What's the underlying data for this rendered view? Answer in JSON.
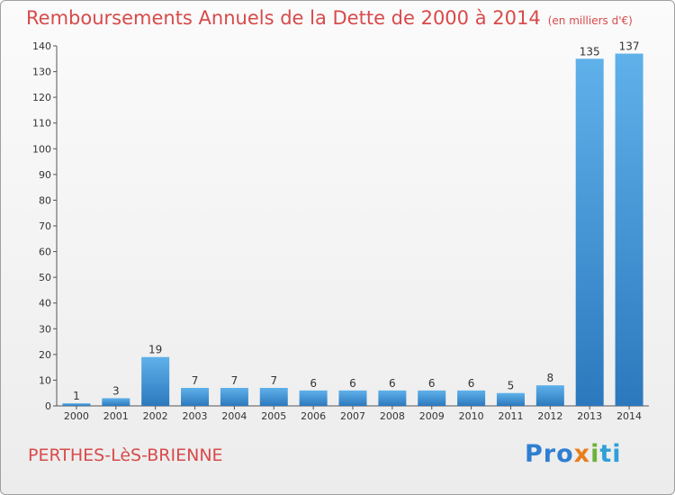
{
  "chart_data": {
    "type": "bar",
    "title": "Remboursements Annuels de la Dette de 2000 à 2014",
    "unit_note": "(en milliers d'€)",
    "categories": [
      "2000",
      "2001",
      "2002",
      "2003",
      "2004",
      "2005",
      "2006",
      "2007",
      "2008",
      "2009",
      "2010",
      "2011",
      "2012",
      "2013",
      "2014"
    ],
    "values": [
      1,
      3,
      19,
      7,
      7,
      7,
      6,
      6,
      6,
      6,
      6,
      5,
      8,
      135,
      137
    ],
    "ylim": [
      0,
      140
    ],
    "yticks": [
      0,
      10,
      20,
      30,
      40,
      50,
      60,
      70,
      80,
      90,
      100,
      110,
      120,
      130,
      140
    ],
    "grid": false,
    "bar_color": "#3a94dc"
  },
  "footer": {
    "commune": "PERTHES-LèS-BRIENNE",
    "logo_parts": [
      "Pro",
      "x",
      "i",
      "ti"
    ]
  }
}
